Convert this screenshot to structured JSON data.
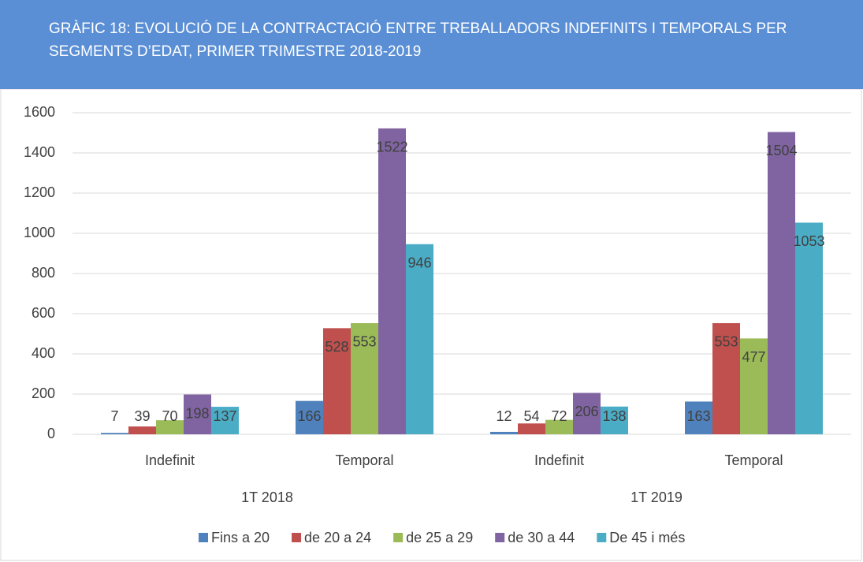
{
  "chart_data": {
    "type": "bar",
    "title": "GRÀFIC 18: EVOLUCIÓ DE LA CONTRACTACIÓ ENTRE TREBALLADORS INDEFINITS I TEMPORALS PER SEGMENTS D’EDAT, PRIMER TRIMESTRE 2018-2019",
    "categories": [
      "Indefinit",
      "Temporal",
      "Indefinit",
      "Temporal"
    ],
    "group_labels": [
      "1T 2018",
      "1T 2019"
    ],
    "series": [
      {
        "name": "Fins a 20",
        "color": "#4f81bd",
        "values": [
          7,
          166,
          12,
          163
        ]
      },
      {
        "name": "de 20 a 24",
        "color": "#c0504d",
        "values": [
          39,
          528,
          54,
          553
        ]
      },
      {
        "name": "de 25 a 29",
        "color": "#9bbb59",
        "values": [
          70,
          553,
          72,
          477
        ]
      },
      {
        "name": "de 30 a 44",
        "color": "#8064a2",
        "values": [
          198,
          1522,
          206,
          1504
        ]
      },
      {
        "name": "De 45 i més",
        "color": "#4bacc6",
        "values": [
          137,
          946,
          138,
          1053
        ]
      }
    ],
    "ylim": [
      0,
      1600
    ],
    "yticks": [
      0,
      200,
      400,
      600,
      800,
      1000,
      1200,
      1400,
      1600
    ],
    "grid": true,
    "legend": "bottom"
  }
}
